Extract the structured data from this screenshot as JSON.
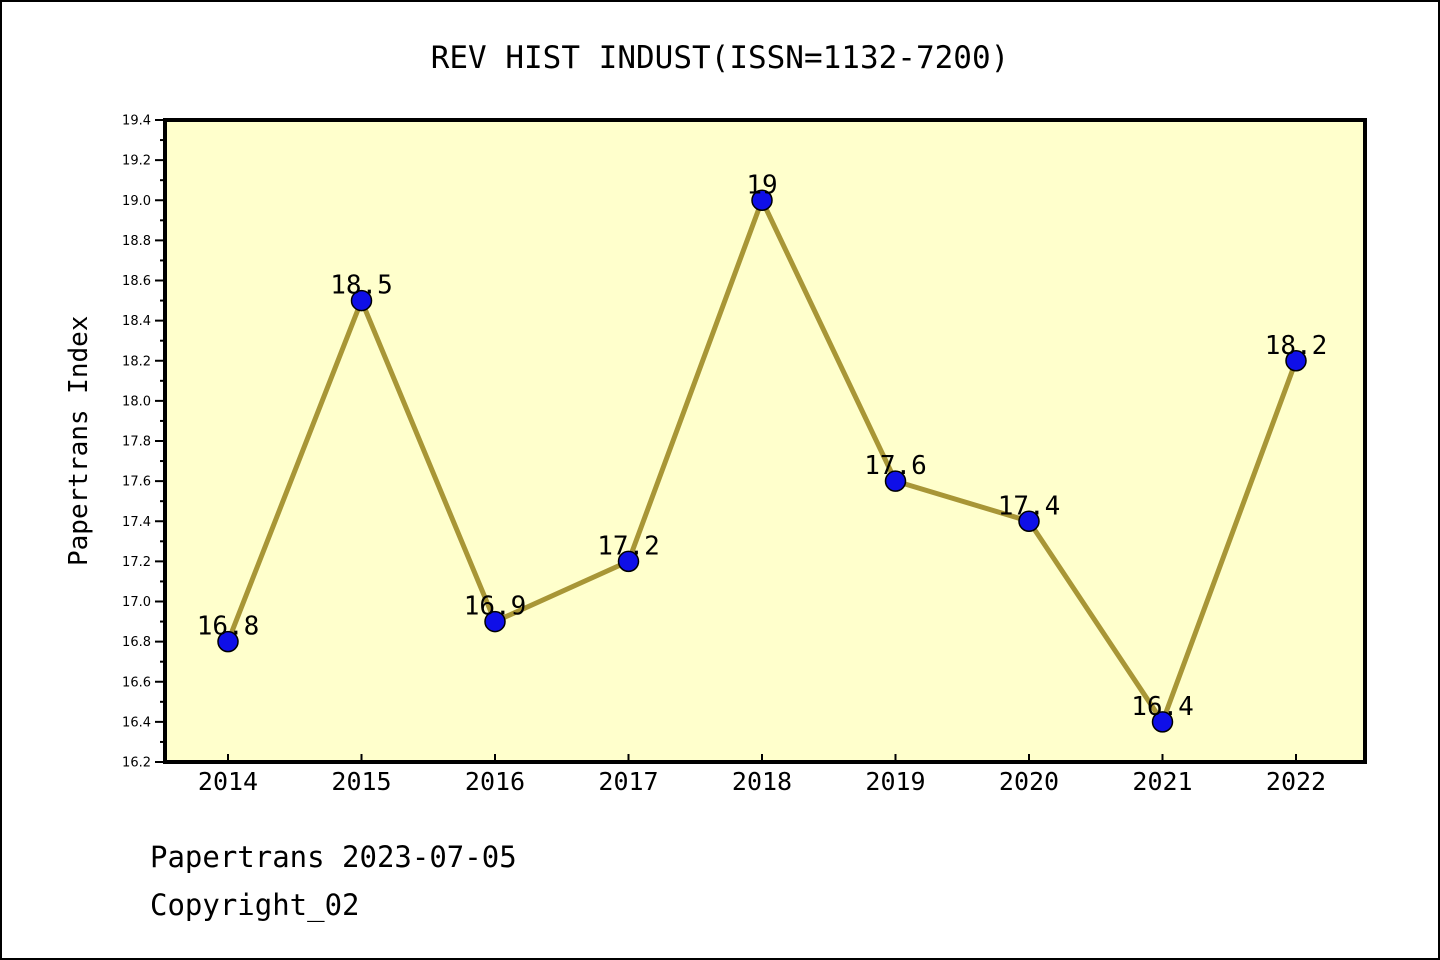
{
  "title": "REV HIST INDUST(ISSN=1132-7200)",
  "footer": {
    "line1": "Papertrans 2023-07-05",
    "line2": "Copyright_02"
  },
  "colors": {
    "plot_bg": "#ffffcc",
    "line": "#a89636",
    "marker_fill": "#0f0fe8",
    "marker_edge": "#000000",
    "axis": "#000000",
    "text": "#000000"
  },
  "chart_data": {
    "type": "line",
    "title": "REV HIST INDUST(ISSN=1132-7200)",
    "xlabel": "",
    "ylabel": "Papertrans Index",
    "categories": [
      2014,
      2015,
      2016,
      2017,
      2018,
      2019,
      2020,
      2021,
      2022
    ],
    "values": [
      16.8,
      18.5,
      16.9,
      17.2,
      19.0,
      17.6,
      17.4,
      16.4,
      18.2
    ],
    "point_labels": [
      "16.8",
      "18.5",
      "16.9",
      "17.2",
      "19",
      "17.6",
      "17.4",
      "16.4",
      "18.2"
    ],
    "ylim": [
      16.2,
      19.4
    ],
    "ytick_major_step": 0.2,
    "ytick_minor_step": 0.1,
    "grid": false,
    "legend_position": "none"
  }
}
